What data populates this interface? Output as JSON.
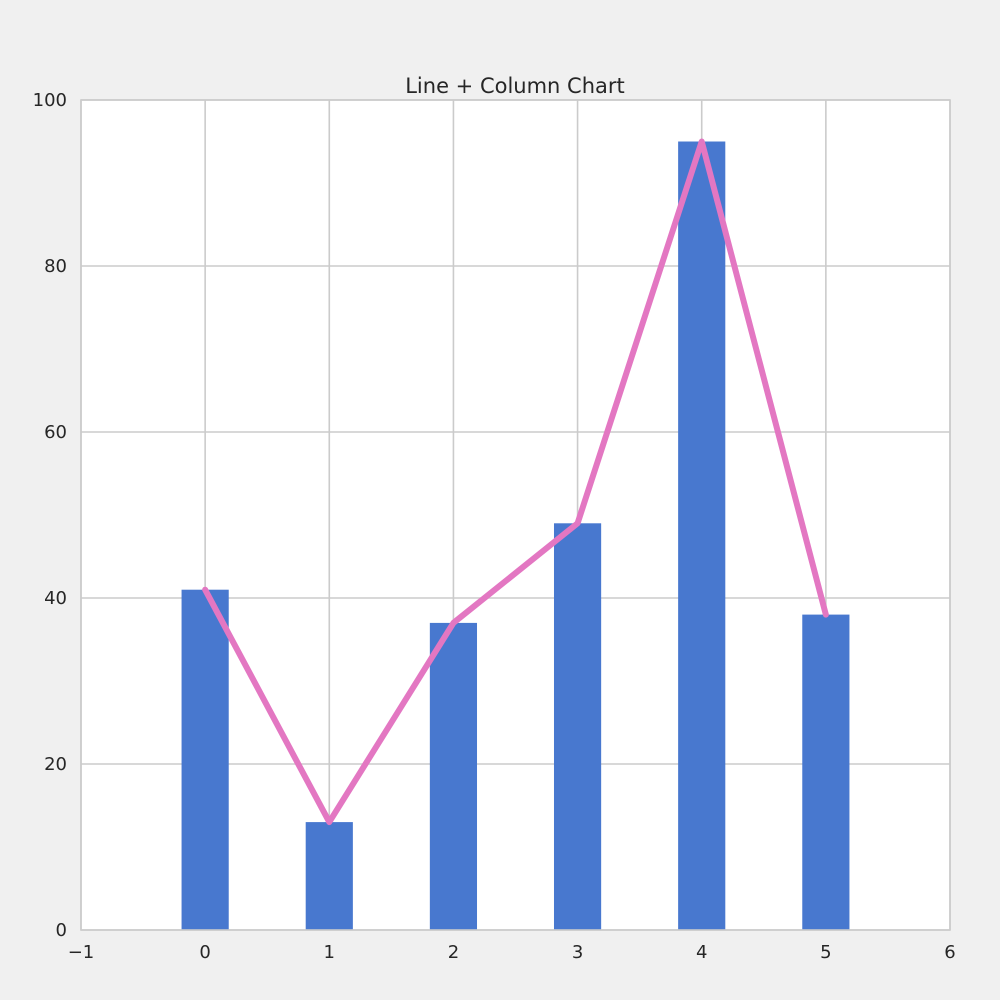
{
  "chart_data": {
    "type": "bar",
    "title": "Line + Column Chart",
    "xlabel": "",
    "ylabel": "",
    "x": [
      0,
      1,
      2,
      3,
      4,
      5
    ],
    "series": [
      {
        "kind": "bar",
        "values": [
          41,
          13,
          37,
          49,
          95,
          38
        ],
        "color": "#4878cf"
      },
      {
        "kind": "line",
        "values": [
          41,
          13,
          37,
          49,
          95,
          38
        ],
        "color": "#e377c2"
      }
    ],
    "xlim": [
      -1,
      6
    ],
    "ylim": [
      0,
      100
    ],
    "xticks": [
      -1,
      0,
      1,
      2,
      3,
      4,
      5,
      6
    ],
    "xtick_labels": [
      "−1",
      "0",
      "1",
      "2",
      "3",
      "4",
      "5",
      "6"
    ],
    "yticks": [
      0,
      20,
      40,
      60,
      80,
      100
    ],
    "ytick_labels": [
      "0",
      "20",
      "40",
      "60",
      "80",
      "100"
    ],
    "grid": true,
    "legend": "none",
    "colors": {
      "background": "#f0f0f0",
      "plot_background": "#ffffff",
      "grid": "#cbcbcb",
      "axes": "#cbcbcb"
    }
  }
}
